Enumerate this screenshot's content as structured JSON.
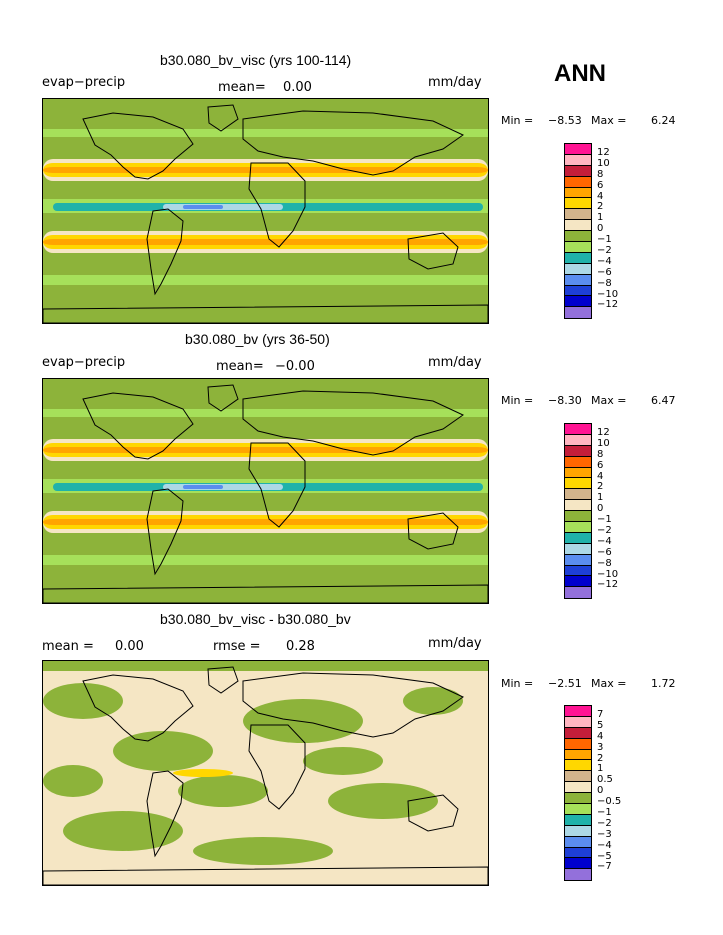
{
  "season": "ANN",
  "panels": [
    {
      "title": "b30.080_bv_visc (yrs 100-114)",
      "field": "evap−precip",
      "mean_label": "mean=",
      "mean_value": "0.00",
      "units": "mm/day",
      "min_label": "Min =",
      "min_value": "−8.53",
      "max_label": "Max =",
      "max_value": "6.24",
      "colorbar_labels": [
        "12",
        "10",
        "8",
        "6",
        "4",
        "2",
        "1",
        "0",
        "−1",
        "−2",
        "−4",
        "−6",
        "−8",
        "−10",
        "−12"
      ]
    },
    {
      "title": "b30.080_bv (yrs 36-50)",
      "field": "evap−precip",
      "mean_label": "mean=",
      "mean_value": "−0.00",
      "units": "mm/day",
      "min_label": "Min =",
      "min_value": "−8.30",
      "max_label": "Max =",
      "max_value": "6.47",
      "colorbar_labels": [
        "12",
        "10",
        "8",
        "6",
        "4",
        "2",
        "1",
        "0",
        "−1",
        "−2",
        "−4",
        "−6",
        "−8",
        "−10",
        "−12"
      ]
    },
    {
      "title": "b30.080_bv_visc - b30.080_bv",
      "mean_label": "mean =",
      "mean_value": "0.00",
      "rmse_label": "rmse =",
      "rmse_value": "0.28",
      "units": "mm/day",
      "min_label": "Min =",
      "min_value": "−2.51",
      "max_label": "Max =",
      "max_value": "1.72",
      "colorbar_labels": [
        "7",
        "5",
        "4",
        "3",
        "2",
        "1",
        "0.5",
        "0",
        "−0.5",
        "−1",
        "−2",
        "−3",
        "−4",
        "−5",
        "−7"
      ]
    }
  ],
  "colors": {
    "scale": [
      "#ff1493",
      "#ffb6c1",
      "#c41e3a",
      "#ff6600",
      "#ffa500",
      "#ffd700",
      "#d2b48c",
      "#f5e6c4",
      "#8db33a",
      "#a6e05a",
      "#20b2aa",
      "#add8e6",
      "#5b8def",
      "#1e3fd6",
      "#0000cd",
      "#9370db"
    ],
    "land_line": "#000000"
  }
}
